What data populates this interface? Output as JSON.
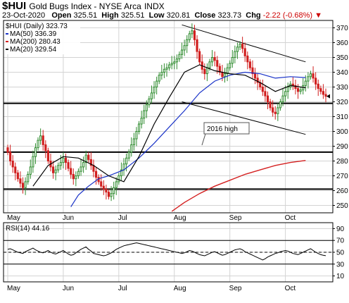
{
  "header": {
    "symbol": "$HUI",
    "name": "Gold Bugs Index - NYSE Arca",
    "exchange": "INDX",
    "date": "23-Oct-2020",
    "open_label": "Open",
    "open": "325.51",
    "high_label": "High",
    "high": "325.51",
    "low_label": "Low",
    "low": "320.81",
    "close_label": "Close",
    "close": "323.73",
    "chg_label": "Chg",
    "chg": "-2.22 (-0.68%)",
    "chg_arrow": "▼"
  },
  "legend": {
    "main": "$HUI (Daily) 323.73",
    "ma50": "MA(50) 336.39",
    "ma200": "MA(200) 280.43",
    "ma20": "MA(20) 329.54"
  },
  "annotation": "2016 high",
  "rsi_legend": "RSI(14) 44.16",
  "colors": {
    "ma50": "#1a33c8",
    "ma200": "#d42020",
    "ma20": "#000000",
    "up": "#2e8b2e",
    "down": "#d11f1f",
    "grid": "#d3d3d3",
    "annotation": "#555555"
  },
  "chart_data": [
    {
      "type": "candlestick",
      "ylim": [
        245,
        375
      ],
      "yticks": [
        250,
        260,
        270,
        280,
        290,
        300,
        310,
        320,
        330,
        340,
        350,
        360,
        370
      ],
      "xticks": [
        "May",
        "Jun",
        "Jul",
        "Aug",
        "Sep",
        "Oct"
      ],
      "grid": true,
      "legend_position": "top-left",
      "last_close": 323.73,
      "horizontal_lines": [
        261,
        286,
        319
      ],
      "channel_upper": [
        [
          69,
          372
        ],
        [
          118,
          347
        ]
      ],
      "channel_lower": [
        [
          69,
          320
        ],
        [
          118,
          298
        ]
      ],
      "closes": [
        286,
        280,
        276,
        272,
        268,
        265,
        262,
        266,
        271,
        276,
        283,
        289,
        294,
        297,
        291,
        287,
        280,
        276,
        272,
        274,
        277,
        279,
        282,
        279,
        275,
        271,
        268,
        270,
        273,
        276,
        279,
        284,
        281,
        277,
        273,
        269,
        266,
        263,
        261,
        259,
        256,
        258,
        262,
        266,
        270,
        274,
        278,
        282,
        286,
        291,
        295,
        300,
        305,
        309,
        314,
        318,
        322,
        326,
        330,
        334,
        338,
        340,
        342,
        343,
        345,
        346,
        347,
        349,
        352,
        355,
        358,
        362,
        366,
        368,
        362,
        354,
        347,
        342,
        339,
        343,
        347,
        350,
        348,
        344,
        340,
        337,
        339,
        343,
        346,
        350,
        354,
        357,
        359,
        356,
        351,
        347,
        343,
        339,
        336,
        333,
        330,
        327,
        324,
        320,
        316,
        313,
        312,
        316,
        320,
        324,
        327,
        330,
        332,
        331,
        329,
        327,
        328,
        331,
        334,
        337,
        339,
        336,
        332,
        329,
        327,
        325,
        323.73
      ],
      "ma20_points": [
        [
          10,
          263
        ],
        [
          16,
          277
        ],
        [
          22,
          283
        ],
        [
          28,
          282
        ],
        [
          34,
          277
        ],
        [
          40,
          270
        ],
        [
          46,
          266
        ],
        [
          52,
          283
        ],
        [
          58,
          305
        ],
        [
          64,
          323
        ],
        [
          70,
          340
        ],
        [
          76,
          345
        ],
        [
          82,
          341
        ],
        [
          88,
          339
        ],
        [
          94,
          338
        ],
        [
          100,
          333
        ],
        [
          106,
          327
        ],
        [
          112,
          331
        ],
        [
          118,
          329.5
        ]
      ],
      "ma50_points": [
        [
          25,
          249
        ],
        [
          28,
          257
        ],
        [
          32,
          263
        ],
        [
          36,
          268
        ],
        [
          40,
          270
        ],
        [
          46,
          274
        ],
        [
          52,
          282
        ],
        [
          58,
          292
        ],
        [
          64,
          303
        ],
        [
          70,
          314
        ],
        [
          76,
          326
        ],
        [
          82,
          334
        ],
        [
          88,
          338
        ],
        [
          94,
          340
        ],
        [
          100,
          339
        ],
        [
          106,
          336
        ],
        [
          112,
          337
        ],
        [
          118,
          336.4
        ]
      ],
      "ma200_points": [
        [
          65,
          246
        ],
        [
          70,
          252
        ],
        [
          76,
          258
        ],
        [
          82,
          263
        ],
        [
          88,
          267
        ],
        [
          94,
          271
        ],
        [
          100,
          274
        ],
        [
          106,
          277
        ],
        [
          112,
          279
        ],
        [
          118,
          280.4
        ]
      ]
    },
    {
      "type": "line",
      "name": "RSI(14)",
      "ylim": [
        0,
        100
      ],
      "yticks": [
        10,
        30,
        50,
        70,
        90
      ],
      "reference_lines": [
        30,
        50,
        70
      ],
      "last_value": 44.16,
      "values": [
        55,
        56,
        54,
        52,
        50,
        49,
        48,
        51,
        53,
        55,
        57,
        54,
        52,
        50,
        49,
        51,
        53,
        50,
        48,
        47,
        49,
        51,
        53,
        50,
        47,
        45,
        46,
        49,
        52,
        55,
        57,
        59,
        55,
        52,
        48,
        47,
        46,
        45,
        44,
        45,
        47,
        49,
        52,
        55,
        57,
        59,
        61,
        62,
        63,
        64,
        65,
        66,
        65,
        64,
        63,
        62,
        61,
        60,
        59,
        58,
        57,
        56,
        55,
        54,
        53,
        52,
        51,
        50,
        49,
        48,
        49,
        51,
        53,
        52,
        50,
        48,
        46,
        45,
        44,
        46,
        48,
        50,
        51,
        49,
        47,
        45,
        46,
        48,
        50,
        52,
        54,
        55,
        56,
        54,
        51,
        49,
        47,
        45,
        43,
        41,
        39,
        37,
        39,
        42,
        44,
        46,
        48,
        49,
        51,
        52,
        53,
        52,
        50,
        48,
        47,
        46,
        48,
        50,
        52,
        54,
        56,
        53,
        50,
        48,
        46,
        45,
        44.16
      ]
    }
  ]
}
